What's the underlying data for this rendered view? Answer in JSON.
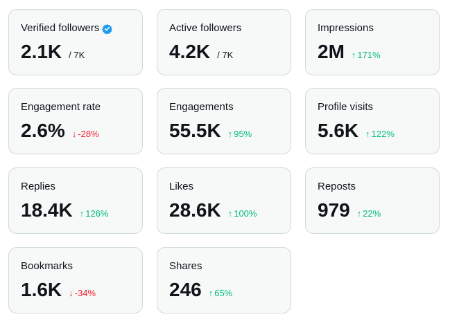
{
  "colors": {
    "up": "#00ba7c",
    "down": "#f4212e",
    "verified": "#1d9bf0"
  },
  "cards": [
    {
      "name": "verified-followers",
      "label": "Verified followers",
      "value": "2.1K",
      "sub": "/ 7K",
      "icon": "verified-badge-icon"
    },
    {
      "name": "active-followers",
      "label": "Active followers",
      "value": "4.2K",
      "sub": "/ 7K"
    },
    {
      "name": "impressions",
      "label": "Impressions",
      "value": "2M",
      "delta": "171%",
      "direction": "up"
    },
    {
      "name": "engagement-rate",
      "label": "Engagement rate",
      "value": "2.6%",
      "delta": "-28%",
      "direction": "down"
    },
    {
      "name": "engagements",
      "label": "Engagements",
      "value": "55.5K",
      "delta": "95%",
      "direction": "up"
    },
    {
      "name": "profile-visits",
      "label": "Profile visits",
      "value": "5.6K",
      "delta": "122%",
      "direction": "up"
    },
    {
      "name": "replies",
      "label": "Replies",
      "value": "18.4K",
      "delta": "126%",
      "direction": "up"
    },
    {
      "name": "likes",
      "label": "Likes",
      "value": "28.6K",
      "delta": "100%",
      "direction": "up"
    },
    {
      "name": "reposts",
      "label": "Reposts",
      "value": "979",
      "delta": "22%",
      "direction": "up"
    },
    {
      "name": "bookmarks",
      "label": "Bookmarks",
      "value": "1.6K",
      "delta": "-34%",
      "direction": "down"
    },
    {
      "name": "shares",
      "label": "Shares",
      "value": "246",
      "delta": "65%",
      "direction": "up"
    }
  ]
}
